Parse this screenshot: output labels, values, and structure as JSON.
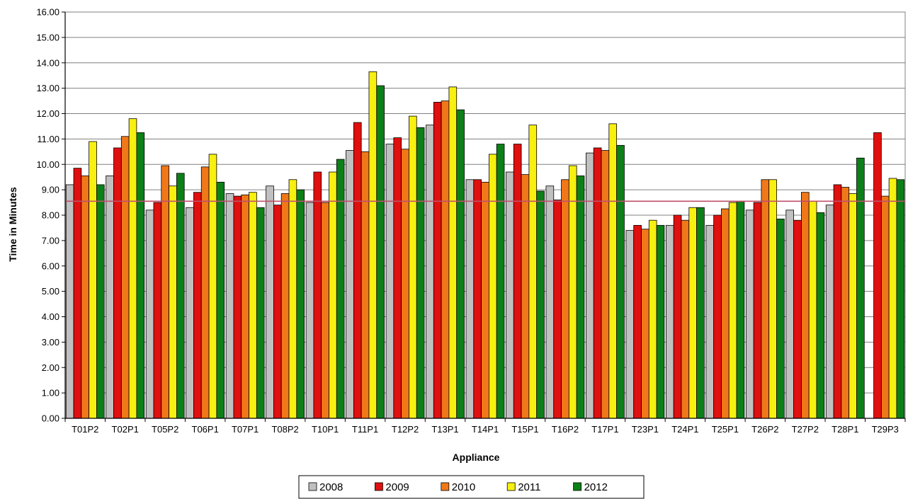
{
  "chart_data": {
    "type": "bar",
    "title": "",
    "xlabel": "Appliance",
    "ylabel": "Time in Minutes",
    "ylim": [
      0,
      16
    ],
    "ytick_step": 1,
    "ytick_labels": [
      "0.00",
      "1.00",
      "2.00",
      "3.00",
      "4.00",
      "5.00",
      "6.00",
      "7.00",
      "8.00",
      "9.00",
      "10.00",
      "11.00",
      "12.00",
      "13.00",
      "14.00",
      "15.00",
      "16.00"
    ],
    "grid": true,
    "legend_position": "bottom",
    "reference_line": {
      "value": 8.55,
      "color": "#c0506a"
    },
    "categories": [
      "T01P2",
      "T02P1",
      "T05P2",
      "T06P1",
      "T07P1",
      "T08P2",
      "T10P1",
      "T11P1",
      "T12P2",
      "T13P1",
      "T14P1",
      "T15P1",
      "T16P2",
      "T17P1",
      "T23P1",
      "T24P1",
      "T25P1",
      "T26P2",
      "T27P2",
      "T28P1",
      "T29P3"
    ],
    "series": [
      {
        "name": "2008",
        "color": "#c0c0c0",
        "values": [
          9.2,
          9.55,
          8.2,
          8.3,
          8.85,
          9.15,
          8.5,
          10.55,
          10.8,
          11.55,
          9.4,
          9.7,
          9.15,
          10.45,
          7.4,
          7.6,
          7.6,
          8.2,
          8.2,
          8.4,
          null
        ]
      },
      {
        "name": "2009",
        "color": "#e0100e",
        "values": [
          9.85,
          10.65,
          8.5,
          8.9,
          8.75,
          8.4,
          9.7,
          11.65,
          11.05,
          12.45,
          9.4,
          10.8,
          8.6,
          10.65,
          7.6,
          8.0,
          8.0,
          8.5,
          7.8,
          9.2,
          11.25
        ]
      },
      {
        "name": "2010",
        "color": "#f07818",
        "values": [
          9.55,
          11.1,
          9.95,
          9.9,
          8.8,
          8.85,
          8.5,
          10.5,
          10.6,
          12.5,
          9.3,
          9.6,
          9.4,
          10.55,
          7.45,
          7.8,
          8.25,
          9.4,
          8.9,
          9.1,
          8.75
        ]
      },
      {
        "name": "2011",
        "color": "#f8f010",
        "values": [
          10.9,
          11.8,
          9.15,
          10.4,
          8.9,
          9.4,
          9.7,
          13.65,
          11.9,
          13.05,
          10.4,
          11.55,
          9.95,
          11.6,
          7.8,
          8.3,
          8.5,
          9.4,
          8.55,
          8.85,
          9.45
        ]
      },
      {
        "name": "2012",
        "color": "#0c8018",
        "values": [
          9.2,
          11.25,
          9.65,
          9.3,
          8.3,
          9.0,
          10.2,
          13.1,
          11.45,
          12.15,
          10.8,
          8.95,
          9.55,
          10.75,
          7.6,
          8.3,
          8.55,
          7.85,
          8.1,
          10.25,
          9.4
        ]
      }
    ]
  }
}
